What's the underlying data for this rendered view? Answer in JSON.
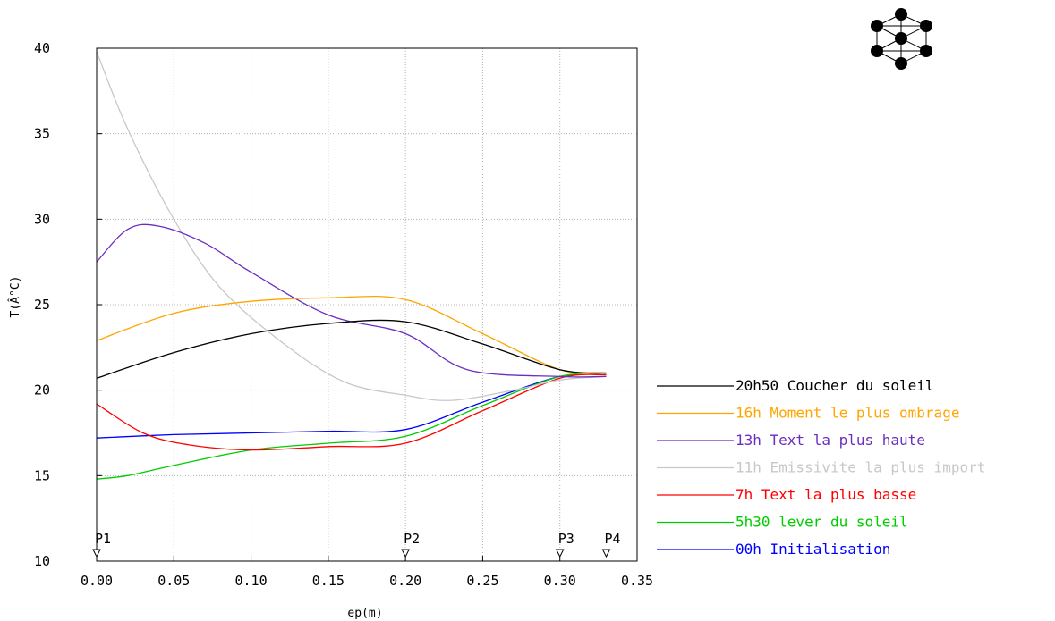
{
  "chart_data": {
    "type": "line",
    "xlabel": "ep(m)",
    "ylabel": "T(Â°C)",
    "xlim": [
      0,
      0.35
    ],
    "ylim": [
      10,
      40
    ],
    "xticks": [
      "0.00",
      "0.05",
      "0.10",
      "0.15",
      "0.20",
      "0.25",
      "0.30",
      "0.35"
    ],
    "yticks": [
      "10",
      "15",
      "20",
      "25",
      "30",
      "35",
      "40"
    ],
    "grid": true,
    "legend_position": "right",
    "markers": [
      {
        "label": "P1",
        "x": 0.0
      },
      {
        "label": "P2",
        "x": 0.2
      },
      {
        "label": "P3",
        "x": 0.3
      },
      {
        "label": "P4",
        "x": 0.33
      }
    ],
    "series": [
      {
        "name": "20h50 Coucher du soleil",
        "color": "#000000",
        "x": [
          0,
          0.05,
          0.1,
          0.15,
          0.2,
          0.25,
          0.3,
          0.33
        ],
        "y": [
          20.7,
          22.2,
          23.3,
          23.9,
          24.0,
          22.7,
          21.2,
          21.0
        ]
      },
      {
        "name": "16h Moment le plus ombrage",
        "color": "#ffa500",
        "x": [
          0,
          0.05,
          0.1,
          0.15,
          0.2,
          0.25,
          0.3,
          0.33
        ],
        "y": [
          22.9,
          24.5,
          25.2,
          25.4,
          25.3,
          23.3,
          21.2,
          21.0
        ]
      },
      {
        "name": "13h Text la plus haute",
        "color": "#6a2ec0",
        "x": [
          0,
          0.02,
          0.04,
          0.07,
          0.1,
          0.15,
          0.2,
          0.24,
          0.3,
          0.33
        ],
        "y": [
          27.5,
          29.4,
          29.6,
          28.6,
          26.9,
          24.4,
          23.3,
          21.2,
          20.8,
          20.8
        ]
      },
      {
        "name": "11h Emissivite la plus import",
        "color": "#c8c8c8",
        "x": [
          0,
          0.02,
          0.05,
          0.08,
          0.12,
          0.16,
          0.2,
          0.23,
          0.27,
          0.3,
          0.33
        ],
        "y": [
          39.8,
          35.3,
          30.0,
          26.0,
          22.8,
          20.5,
          19.7,
          19.4,
          20.0,
          20.6,
          20.8
        ]
      },
      {
        "name": "7h Text la plus basse",
        "color": "#ff0000",
        "x": [
          0,
          0.03,
          0.06,
          0.1,
          0.15,
          0.2,
          0.25,
          0.3,
          0.33
        ],
        "y": [
          19.2,
          17.5,
          16.8,
          16.5,
          16.7,
          16.9,
          18.8,
          20.7,
          20.9
        ]
      },
      {
        "name": "5h30 lever du soleil",
        "color": "#00cc00",
        "x": [
          0,
          0.02,
          0.05,
          0.1,
          0.15,
          0.2,
          0.25,
          0.3,
          0.33
        ],
        "y": [
          14.8,
          15.0,
          15.6,
          16.5,
          16.9,
          17.3,
          19.1,
          20.8,
          20.9
        ]
      },
      {
        "name": "00h Initialisation",
        "color": "#0000ff",
        "x": [
          0,
          0.05,
          0.1,
          0.15,
          0.2,
          0.25,
          0.3,
          0.33
        ],
        "y": [
          17.2,
          17.4,
          17.5,
          17.6,
          17.7,
          19.3,
          20.8,
          20.9
        ]
      }
    ]
  },
  "logo": {
    "name": "network-logo-icon",
    "color": "#000000"
  }
}
